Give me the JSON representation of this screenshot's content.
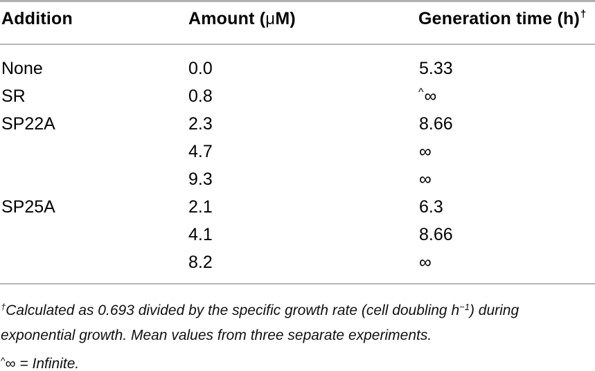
{
  "table": {
    "header": {
      "addition": "Addition",
      "amount_pre": "Amount (",
      "amount_mu": "μ",
      "amount_post": "M)",
      "generation": "Generation time (h)",
      "generation_sup": "†"
    },
    "rows": [
      {
        "addition": "None",
        "amount": "0.0",
        "gen_sup": "",
        "gen": "5.33"
      },
      {
        "addition": "SR",
        "amount": "0.8",
        "gen_sup": "^",
        "gen": "∞"
      },
      {
        "addition": "SP22A",
        "amount": "2.3",
        "gen_sup": "",
        "gen": "8.66"
      },
      {
        "addition": "",
        "amount": "4.7",
        "gen_sup": "",
        "gen": "∞"
      },
      {
        "addition": "",
        "amount": "9.3",
        "gen_sup": "",
        "gen": "∞"
      },
      {
        "addition": "SP25A",
        "amount": "2.1",
        "gen_sup": "",
        "gen": "6.3"
      },
      {
        "addition": "",
        "amount": "4.1",
        "gen_sup": "",
        "gen": "8.66"
      },
      {
        "addition": "",
        "amount": "8.2",
        "gen_sup": "",
        "gen": "∞"
      }
    ]
  },
  "footnotes": {
    "note1": {
      "marker": "†",
      "line1_text": "Calculated as 0.693 divided by the specific growth rate (cell doubling h",
      "line1_sup": "−1",
      "line1_end": ") during",
      "line2": "exponential growth. Mean values from three separate experiments."
    },
    "note2": {
      "marker": "^",
      "symbol": "∞",
      "text": " = Infinite."
    }
  },
  "colors": {
    "rule_heavy": "#b0b0b0",
    "rule_light": "#b5b5b5",
    "text": "#000000"
  }
}
